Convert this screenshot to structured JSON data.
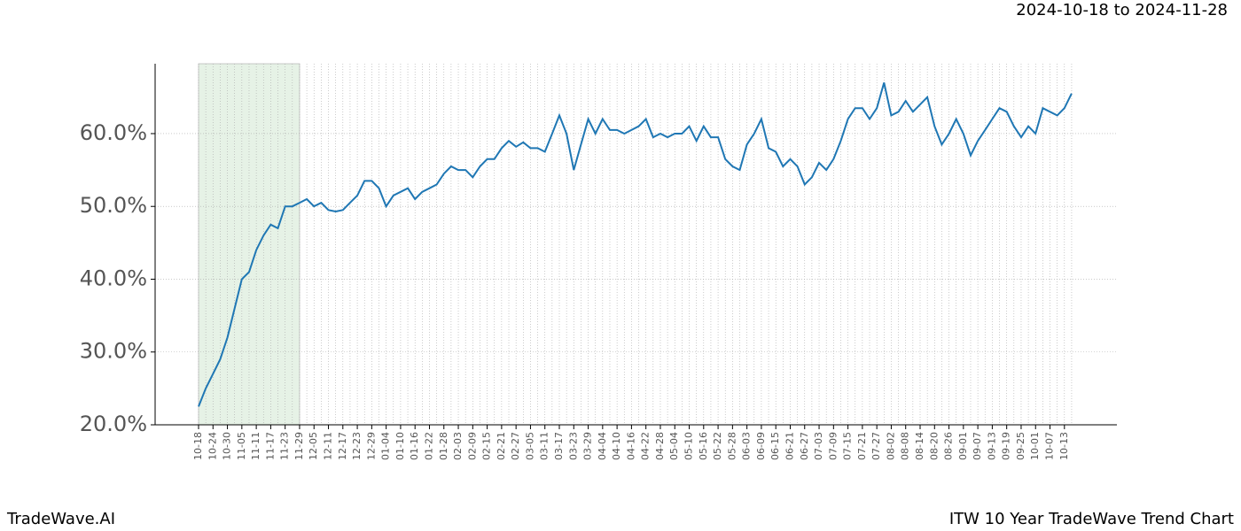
{
  "chart_data": {
    "type": "line",
    "title": "ITW 10 Year TradeWave Trend Chart",
    "subtitle": "2024-10-18 to 2024-11-28",
    "watermark": "TradeWave.AI",
    "categories": [
      "10-18",
      null,
      "10-24",
      null,
      "10-30",
      null,
      "11-05",
      null,
      "11-11",
      null,
      "11-17",
      null,
      "11-23",
      null,
      "11-29",
      null,
      "12-05",
      null,
      "12-11",
      null,
      "12-17",
      null,
      "12-23",
      null,
      "12-29",
      null,
      "01-04",
      null,
      "01-10",
      null,
      "01-16",
      null,
      "01-22",
      null,
      "01-28",
      null,
      "02-03",
      null,
      "02-09",
      null,
      "02-15",
      null,
      "02-21",
      null,
      "02-27",
      null,
      "03-05",
      null,
      "03-11",
      null,
      "03-17",
      null,
      "03-23",
      null,
      "03-29",
      null,
      "04-04",
      null,
      "04-10",
      null,
      "04-16",
      null,
      "04-22",
      null,
      "04-28",
      null,
      "05-04",
      null,
      "05-10",
      null,
      "05-16",
      null,
      "05-22",
      null,
      "05-28",
      null,
      "06-03",
      null,
      "06-09",
      null,
      "06-15",
      null,
      "06-21",
      null,
      "06-27",
      null,
      "07-03",
      null,
      "07-09",
      null,
      "07-15",
      null,
      "07-21",
      null,
      "07-27",
      null,
      "08-02",
      null,
      "08-08",
      null,
      "08-14",
      null,
      "08-20",
      null,
      "08-26",
      null,
      "09-01",
      null,
      "09-07",
      null,
      "09-13",
      null,
      "09-19",
      null,
      "09-25",
      null,
      "10-01",
      null,
      "10-07",
      null,
      "10-13",
      null
    ],
    "series": [
      {
        "name": "ITW",
        "color": "#1f77b4",
        "values": [
          22.5,
          25,
          27,
          29,
          32,
          36,
          40,
          41,
          44,
          46,
          47.5,
          47,
          50,
          50,
          50.5,
          51,
          50,
          50.5,
          49.5,
          49.3,
          49.5,
          50.5,
          51.5,
          53.5,
          53.5,
          52.5,
          50,
          51.5,
          52,
          52.5,
          51,
          52,
          52.5,
          53,
          54.5,
          55.5,
          55,
          55,
          54,
          55.5,
          56.5,
          56.5,
          58,
          59,
          58.2,
          58.8,
          58,
          58,
          57.5,
          60,
          62.5,
          60,
          55,
          58.5,
          62,
          60,
          62,
          60.5,
          60.5,
          60,
          60.5,
          61,
          62,
          59.5,
          60,
          59.5,
          60,
          60,
          61,
          59,
          61,
          59.5,
          59.5,
          56.5,
          55.5,
          55,
          58.5,
          60,
          62,
          58,
          57.5,
          55.5,
          56.5,
          55.5,
          53,
          54,
          56,
          55,
          56.5,
          59,
          62,
          63.5,
          63.5,
          62,
          63.5,
          67,
          62.5,
          63,
          64.5,
          63,
          64,
          65,
          61,
          58.5,
          60,
          62,
          60,
          57,
          59,
          60.5,
          62,
          63.5,
          63,
          61,
          59.5,
          61,
          60,
          63.5,
          63,
          62.5,
          63.5,
          65.5
        ]
      }
    ],
    "shade": {
      "from": 0,
      "to": 14,
      "color": "#e6f2e6"
    },
    "ylim": [
      20,
      69.6
    ],
    "yticks": [
      {
        "value": 20,
        "label": "20.0%"
      },
      {
        "value": 30,
        "label": "30.0%"
      },
      {
        "value": 40,
        "label": "40.0%"
      },
      {
        "value": 50,
        "label": "50.0%"
      },
      {
        "value": 60,
        "label": "60.0%"
      }
    ],
    "grid": true
  }
}
